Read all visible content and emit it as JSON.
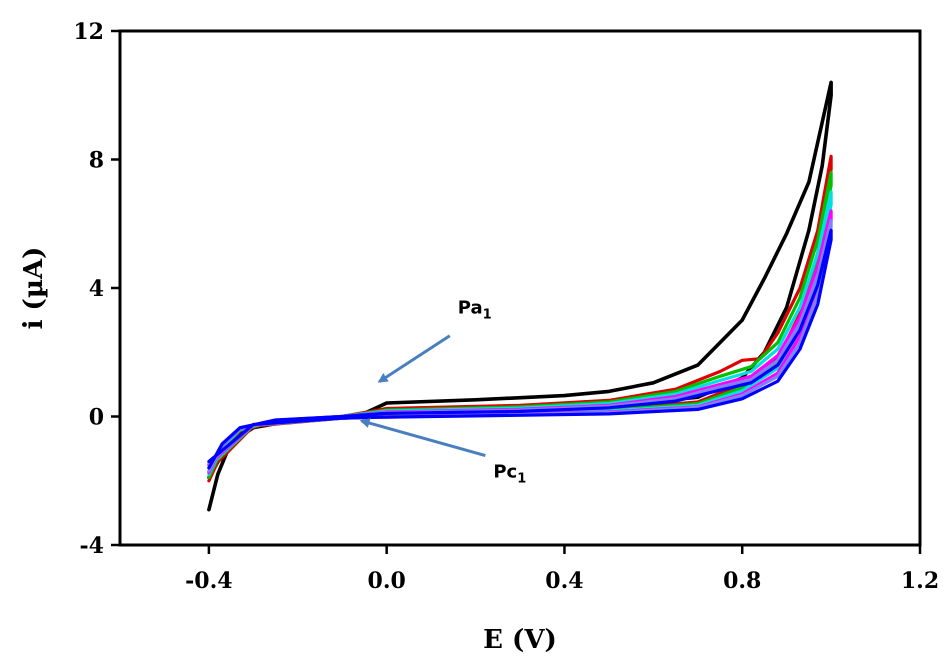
{
  "chart_data": {
    "type": "line",
    "xlabel": "E (V)",
    "ylabel": "i (µA)",
    "xlim": [
      -0.6,
      1.2
    ],
    "ylim": [
      -4,
      12
    ],
    "xticks": [
      -0.4,
      0.0,
      0.4,
      0.8,
      1.2
    ],
    "yticks": [
      -4,
      0,
      4,
      8,
      12
    ],
    "xtick_labels": [
      "-0.4",
      "0.0",
      "0.4",
      "0.8",
      "1.2"
    ],
    "ytick_labels": [
      "-4",
      "0",
      "4",
      "8",
      "12"
    ],
    "grid": false,
    "legend": "none",
    "annotations": [
      {
        "id": "pa1",
        "main": "Pa",
        "sub": "1",
        "point": [
          -0.03,
          0.9
        ],
        "label_at": [
          0.16,
          3.2
        ]
      },
      {
        "id": "pc1",
        "main": "Pc",
        "sub": "1",
        "point": [
          -0.07,
          0.05
        ],
        "label_at": [
          0.24,
          -1.9
        ]
      }
    ],
    "series": [
      {
        "color": "#000000",
        "anodic": [
          [
            -0.4,
            -2.9
          ],
          [
            -0.38,
            -1.8
          ],
          [
            -0.35,
            -0.8
          ],
          [
            -0.3,
            -0.35
          ],
          [
            -0.2,
            -0.1
          ],
          [
            -0.1,
            0.0
          ],
          [
            -0.05,
            0.1
          ],
          [
            0.0,
            0.42
          ],
          [
            0.2,
            0.52
          ],
          [
            0.4,
            0.65
          ],
          [
            0.5,
            0.78
          ],
          [
            0.6,
            1.05
          ],
          [
            0.7,
            1.6
          ],
          [
            0.8,
            3.0
          ],
          [
            0.85,
            4.3
          ],
          [
            0.9,
            5.7
          ],
          [
            0.95,
            7.3
          ],
          [
            1.0,
            10.4
          ]
        ],
        "cathodic": [
          [
            1.0,
            10.0
          ],
          [
            0.98,
            7.8
          ],
          [
            0.95,
            5.8
          ],
          [
            0.9,
            3.4
          ],
          [
            0.85,
            2.0
          ],
          [
            0.8,
            1.2
          ],
          [
            0.7,
            0.6
          ],
          [
            0.5,
            0.32
          ],
          [
            0.3,
            0.22
          ],
          [
            0.1,
            0.12
          ],
          [
            0.0,
            0.05
          ],
          [
            -0.1,
            -0.05
          ],
          [
            -0.2,
            -0.1
          ],
          [
            -0.3,
            -0.3
          ],
          [
            -0.35,
            -0.7
          ],
          [
            -0.4,
            -1.9
          ]
        ]
      },
      {
        "color": "#e00000",
        "anodic": [
          [
            -0.4,
            -2.0
          ],
          [
            -0.37,
            -1.1
          ],
          [
            -0.33,
            -0.45
          ],
          [
            -0.25,
            -0.15
          ],
          [
            -0.1,
            0.0
          ],
          [
            0.0,
            0.25
          ],
          [
            0.3,
            0.35
          ],
          [
            0.5,
            0.5
          ],
          [
            0.65,
            0.85
          ],
          [
            0.75,
            1.4
          ],
          [
            0.8,
            1.75
          ],
          [
            0.84,
            1.8
          ],
          [
            0.88,
            2.6
          ],
          [
            0.93,
            4.0
          ],
          [
            0.97,
            5.8
          ],
          [
            1.0,
            8.1
          ]
        ],
        "cathodic": [
          [
            1.0,
            7.7
          ],
          [
            0.97,
            5.1
          ],
          [
            0.93,
            3.2
          ],
          [
            0.88,
            1.8
          ],
          [
            0.8,
            1.0
          ],
          [
            0.7,
            0.45
          ],
          [
            0.5,
            0.22
          ],
          [
            0.2,
            0.1
          ],
          [
            0.0,
            0.0
          ],
          [
            -0.1,
            -0.05
          ],
          [
            -0.3,
            -0.3
          ],
          [
            -0.4,
            -1.7
          ]
        ]
      },
      {
        "color": "#00c000",
        "anodic": [
          [
            -0.4,
            -1.9
          ],
          [
            -0.37,
            -1.0
          ],
          [
            -0.33,
            -0.42
          ],
          [
            -0.25,
            -0.14
          ],
          [
            -0.1,
            0.0
          ],
          [
            0.0,
            0.2
          ],
          [
            0.3,
            0.3
          ],
          [
            0.5,
            0.45
          ],
          [
            0.65,
            0.78
          ],
          [
            0.75,
            1.25
          ],
          [
            0.82,
            1.55
          ],
          [
            0.88,
            2.3
          ],
          [
            0.93,
            3.7
          ],
          [
            0.97,
            5.5
          ],
          [
            1.0,
            7.6
          ]
        ],
        "cathodic": [
          [
            1.0,
            7.2
          ],
          [
            0.97,
            4.8
          ],
          [
            0.93,
            3.0
          ],
          [
            0.88,
            1.7
          ],
          [
            0.8,
            0.9
          ],
          [
            0.7,
            0.4
          ],
          [
            0.5,
            0.2
          ],
          [
            0.2,
            0.08
          ],
          [
            0.0,
            0.0
          ],
          [
            -0.1,
            -0.05
          ],
          [
            -0.3,
            -0.28
          ],
          [
            -0.4,
            -1.6
          ]
        ]
      },
      {
        "color": "#00e0e0",
        "anodic": [
          [
            -0.4,
            -1.8
          ],
          [
            -0.37,
            -0.95
          ],
          [
            -0.33,
            -0.4
          ],
          [
            -0.25,
            -0.13
          ],
          [
            -0.1,
            0.0
          ],
          [
            0.0,
            0.17
          ],
          [
            0.3,
            0.26
          ],
          [
            0.5,
            0.4
          ],
          [
            0.65,
            0.7
          ],
          [
            0.75,
            1.12
          ],
          [
            0.82,
            1.4
          ],
          [
            0.88,
            2.1
          ],
          [
            0.93,
            3.4
          ],
          [
            0.97,
            5.1
          ],
          [
            1.0,
            7.0
          ]
        ],
        "cathodic": [
          [
            1.0,
            6.6
          ],
          [
            0.97,
            4.4
          ],
          [
            0.93,
            2.7
          ],
          [
            0.88,
            1.5
          ],
          [
            0.8,
            0.8
          ],
          [
            0.7,
            0.35
          ],
          [
            0.5,
            0.17
          ],
          [
            0.2,
            0.06
          ],
          [
            0.0,
            -0.01
          ],
          [
            -0.1,
            -0.05
          ],
          [
            -0.3,
            -0.27
          ],
          [
            -0.4,
            -1.55
          ]
        ]
      },
      {
        "color": "#ff00ff",
        "anodic": [
          [
            -0.4,
            -1.75
          ],
          [
            -0.37,
            -0.9
          ],
          [
            -0.33,
            -0.38
          ],
          [
            -0.25,
            -0.12
          ],
          [
            -0.1,
            0.0
          ],
          [
            0.0,
            0.14
          ],
          [
            0.3,
            0.22
          ],
          [
            0.5,
            0.35
          ],
          [
            0.65,
            0.62
          ],
          [
            0.75,
            1.0
          ],
          [
            0.82,
            1.25
          ],
          [
            0.88,
            1.9
          ],
          [
            0.93,
            3.1
          ],
          [
            0.97,
            4.7
          ],
          [
            1.0,
            6.4
          ]
        ],
        "cathodic": [
          [
            1.0,
            6.1
          ],
          [
            0.97,
            4.0
          ],
          [
            0.93,
            2.5
          ],
          [
            0.88,
            1.35
          ],
          [
            0.8,
            0.7
          ],
          [
            0.7,
            0.3
          ],
          [
            0.5,
            0.14
          ],
          [
            0.2,
            0.05
          ],
          [
            0.0,
            -0.01
          ],
          [
            -0.1,
            -0.05
          ],
          [
            -0.3,
            -0.26
          ],
          [
            -0.4,
            -1.5
          ]
        ]
      },
      {
        "color": "#8080ff",
        "anodic": [
          [
            -0.4,
            -1.7
          ],
          [
            -0.37,
            -0.88
          ],
          [
            -0.33,
            -0.37
          ],
          [
            -0.25,
            -0.12
          ],
          [
            -0.1,
            0.0
          ],
          [
            0.0,
            0.12
          ],
          [
            0.3,
            0.2
          ],
          [
            0.5,
            0.32
          ],
          [
            0.65,
            0.56
          ],
          [
            0.75,
            0.92
          ],
          [
            0.82,
            1.15
          ],
          [
            0.88,
            1.75
          ],
          [
            0.93,
            2.9
          ],
          [
            0.97,
            4.4
          ],
          [
            1.0,
            6.1
          ]
        ],
        "cathodic": [
          [
            1.0,
            5.9
          ],
          [
            0.97,
            3.8
          ],
          [
            0.93,
            2.3
          ],
          [
            0.88,
            1.25
          ],
          [
            0.8,
            0.65
          ],
          [
            0.7,
            0.28
          ],
          [
            0.5,
            0.12
          ],
          [
            0.2,
            0.04
          ],
          [
            0.0,
            -0.02
          ],
          [
            -0.1,
            -0.05
          ],
          [
            -0.3,
            -0.25
          ],
          [
            -0.4,
            -1.45
          ]
        ]
      },
      {
        "color": "#0000ff",
        "anodic": [
          [
            -0.4,
            -1.6
          ],
          [
            -0.37,
            -0.85
          ],
          [
            -0.33,
            -0.35
          ],
          [
            -0.25,
            -0.11
          ],
          [
            -0.1,
            0.0
          ],
          [
            0.0,
            0.1
          ],
          [
            0.3,
            0.16
          ],
          [
            0.5,
            0.27
          ],
          [
            0.65,
            0.48
          ],
          [
            0.75,
            0.82
          ],
          [
            0.82,
            1.05
          ],
          [
            0.88,
            1.6
          ],
          [
            0.93,
            2.7
          ],
          [
            0.97,
            4.1
          ],
          [
            1.0,
            5.8
          ]
        ],
        "cathodic": [
          [
            1.0,
            5.5
          ],
          [
            0.97,
            3.5
          ],
          [
            0.93,
            2.1
          ],
          [
            0.88,
            1.1
          ],
          [
            0.8,
            0.55
          ],
          [
            0.7,
            0.22
          ],
          [
            0.5,
            0.08
          ],
          [
            0.2,
            0.02
          ],
          [
            0.0,
            -0.02
          ],
          [
            -0.1,
            -0.05
          ],
          [
            -0.3,
            -0.25
          ],
          [
            -0.4,
            -1.4
          ]
        ]
      }
    ]
  }
}
